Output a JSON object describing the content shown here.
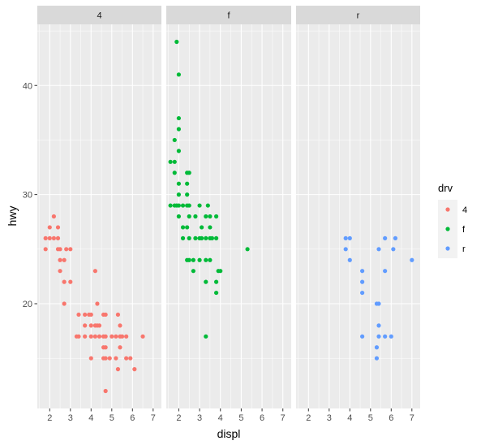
{
  "chart_data": {
    "type": "scatter",
    "title": "",
    "xlabel": "displ",
    "ylabel": "hwy",
    "xlim": [
      1.4,
      7.4
    ],
    "ylim": [
      10.4,
      45.6
    ],
    "x_ticks": [
      2,
      3,
      4,
      5,
      6,
      7
    ],
    "y_ticks": [
      20,
      30,
      40
    ],
    "grid": true,
    "facet_by": "drv",
    "panels": [
      "4",
      "f",
      "r"
    ],
    "legend": {
      "title": "drv",
      "position": "right",
      "entries": [
        {
          "label": "4",
          "color": "#F8766D"
        },
        {
          "label": "f",
          "color": "#00BA38"
        },
        {
          "label": "r",
          "color": "#619CFF"
        }
      ]
    },
    "series": [
      {
        "name": "4",
        "color": "#F8766D",
        "points": [
          [
            1.8,
            25
          ],
          [
            1.8,
            26
          ],
          [
            2.0,
            26
          ],
          [
            2.0,
            27
          ],
          [
            2.2,
            26
          ],
          [
            2.2,
            28
          ],
          [
            2.4,
            25
          ],
          [
            2.4,
            26
          ],
          [
            2.4,
            27
          ],
          [
            2.5,
            23
          ],
          [
            2.5,
            24
          ],
          [
            2.5,
            25
          ],
          [
            2.7,
            20
          ],
          [
            2.7,
            22
          ],
          [
            2.7,
            24
          ],
          [
            2.8,
            25
          ],
          [
            3.0,
            22
          ],
          [
            3.0,
            25
          ],
          [
            3.3,
            17
          ],
          [
            3.4,
            17
          ],
          [
            3.4,
            19
          ],
          [
            3.7,
            17
          ],
          [
            3.7,
            18
          ],
          [
            3.7,
            19
          ],
          [
            3.9,
            19
          ],
          [
            4.0,
            15
          ],
          [
            4.0,
            17
          ],
          [
            4.0,
            18
          ],
          [
            4.0,
            19
          ],
          [
            4.2,
            17
          ],
          [
            4.2,
            18
          ],
          [
            4.2,
            23
          ],
          [
            4.3,
            18
          ],
          [
            4.3,
            20
          ],
          [
            4.4,
            17
          ],
          [
            4.4,
            18
          ],
          [
            4.6,
            15
          ],
          [
            4.6,
            16
          ],
          [
            4.6,
            17
          ],
          [
            4.6,
            19
          ],
          [
            4.7,
            12
          ],
          [
            4.7,
            15
          ],
          [
            4.7,
            16
          ],
          [
            4.7,
            17
          ],
          [
            4.7,
            19
          ],
          [
            4.9,
            15
          ],
          [
            5.0,
            17
          ],
          [
            5.2,
            15
          ],
          [
            5.2,
            17
          ],
          [
            5.3,
            14
          ],
          [
            5.3,
            19
          ],
          [
            5.4,
            16
          ],
          [
            5.4,
            17
          ],
          [
            5.4,
            18
          ],
          [
            5.5,
            17
          ],
          [
            5.7,
            15
          ],
          [
            5.7,
            17
          ],
          [
            5.9,
            15
          ],
          [
            6.1,
            14
          ],
          [
            6.5,
            17
          ]
        ]
      },
      {
        "name": "f",
        "color": "#00BA38",
        "points": [
          [
            1.6,
            29
          ],
          [
            1.6,
            33
          ],
          [
            1.8,
            29
          ],
          [
            1.8,
            32
          ],
          [
            1.8,
            33
          ],
          [
            1.8,
            35
          ],
          [
            1.9,
            29
          ],
          [
            1.9,
            44
          ],
          [
            2.0,
            28
          ],
          [
            2.0,
            29
          ],
          [
            2.0,
            30
          ],
          [
            2.0,
            31
          ],
          [
            2.0,
            34
          ],
          [
            2.0,
            36
          ],
          [
            2.0,
            37
          ],
          [
            2.0,
            41
          ],
          [
            2.2,
            26
          ],
          [
            2.2,
            27
          ],
          [
            2.2,
            29
          ],
          [
            2.4,
            24
          ],
          [
            2.4,
            27
          ],
          [
            2.4,
            29
          ],
          [
            2.4,
            30
          ],
          [
            2.4,
            31
          ],
          [
            2.4,
            32
          ],
          [
            2.5,
            24
          ],
          [
            2.5,
            26
          ],
          [
            2.5,
            28
          ],
          [
            2.5,
            29
          ],
          [
            2.5,
            32
          ],
          [
            2.7,
            23
          ],
          [
            2.7,
            24
          ],
          [
            2.8,
            26
          ],
          [
            2.8,
            28
          ],
          [
            3.0,
            24
          ],
          [
            3.0,
            26
          ],
          [
            3.0,
            29
          ],
          [
            3.1,
            26
          ],
          [
            3.1,
            27
          ],
          [
            3.3,
            17
          ],
          [
            3.3,
            22
          ],
          [
            3.3,
            24
          ],
          [
            3.3,
            26
          ],
          [
            3.3,
            28
          ],
          [
            3.4,
            29
          ],
          [
            3.5,
            24
          ],
          [
            3.5,
            26
          ],
          [
            3.5,
            27
          ],
          [
            3.5,
            28
          ],
          [
            3.6,
            26
          ],
          [
            3.8,
            21
          ],
          [
            3.8,
            22
          ],
          [
            3.8,
            26
          ],
          [
            3.8,
            28
          ],
          [
            3.9,
            23
          ],
          [
            4.0,
            23
          ],
          [
            5.3,
            25
          ]
        ]
      },
      {
        "name": "r",
        "color": "#619CFF",
        "points": [
          [
            3.8,
            25
          ],
          [
            3.8,
            26
          ],
          [
            4.0,
            24
          ],
          [
            4.0,
            26
          ],
          [
            4.6,
            17
          ],
          [
            4.6,
            21
          ],
          [
            4.6,
            22
          ],
          [
            4.6,
            23
          ],
          [
            5.3,
            15
          ],
          [
            5.3,
            16
          ],
          [
            5.3,
            20
          ],
          [
            5.4,
            17
          ],
          [
            5.4,
            18
          ],
          [
            5.4,
            20
          ],
          [
            5.4,
            25
          ],
          [
            5.7,
            17
          ],
          [
            5.7,
            23
          ],
          [
            5.7,
            26
          ],
          [
            6.0,
            17
          ],
          [
            6.1,
            25
          ],
          [
            6.2,
            26
          ],
          [
            7.0,
            24
          ]
        ]
      }
    ]
  }
}
